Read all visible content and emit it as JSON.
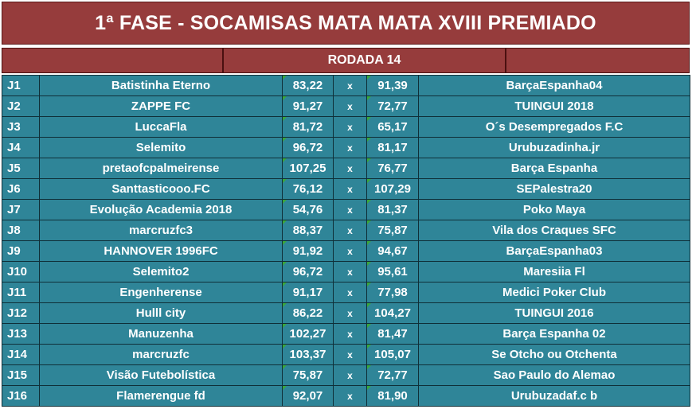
{
  "title": "1ª FASE - SOCAMISAS MATA MATA XVIII PREMIADO",
  "round_label": "RODADA 14",
  "vs_symbol": "x",
  "matches": [
    {
      "game": "J1",
      "home": "Batistinha Eterno",
      "home_score": "83,22",
      "away_score": "91,39",
      "away": "BarçaEspanha04"
    },
    {
      "game": "J2",
      "home": "ZAPPE FC",
      "home_score": "91,27",
      "away_score": "72,77",
      "away": "TUINGUI 2018"
    },
    {
      "game": "J3",
      "home": "LuccaFla",
      "home_score": "81,72",
      "away_score": "65,17",
      "away": "O´s Desempregados F.C"
    },
    {
      "game": "J4",
      "home": "Selemito",
      "home_score": "96,72",
      "away_score": "81,17",
      "away": "Urubuzadinha.jr"
    },
    {
      "game": "J5",
      "home": "pretaofcpalmeirense",
      "home_score": "107,25",
      "away_score": "76,77",
      "away": "Barça Espanha"
    },
    {
      "game": "J6",
      "home": "Santtasticooo.FC",
      "home_score": "76,12",
      "away_score": "107,29",
      "away": "SEPalestra20"
    },
    {
      "game": "J7",
      "home": "Evolução Academia 2018",
      "home_score": "54,76",
      "away_score": "81,37",
      "away": "Poko Maya"
    },
    {
      "game": "J8",
      "home": "marcruzfc3",
      "home_score": "88,37",
      "away_score": "75,87",
      "away": "Vila dos Craques SFC"
    },
    {
      "game": "J9",
      "home": "HANNOVER 1996FC",
      "home_score": "91,92",
      "away_score": "94,67",
      "away": "BarçaEspanha03"
    },
    {
      "game": "J10",
      "home": "Selemito2",
      "home_score": "96,72",
      "away_score": "95,61",
      "away": "Maresiia Fl"
    },
    {
      "game": "J11",
      "home": "Engenherense",
      "home_score": "91,17",
      "away_score": "77,98",
      "away": "Medici Poker Club"
    },
    {
      "game": "J12",
      "home": "Hulll city",
      "home_score": "86,22",
      "away_score": "104,27",
      "away": "TUINGUI 2016"
    },
    {
      "game": "J13",
      "home": "Manuzenha",
      "home_score": "102,27",
      "away_score": "81,47",
      "away": "Barça Espanha 02"
    },
    {
      "game": "J14",
      "home": "marcruzfc",
      "home_score": "103,37",
      "away_score": "105,07",
      "away": "Se Otcho ou Otchenta"
    },
    {
      "game": "J15",
      "home": "Visão Futebolística",
      "home_score": "75,87",
      "away_score": "72,77",
      "away": "Sao Paulo do Alemao"
    },
    {
      "game": "J16",
      "home": "Flamerengue fd",
      "home_score": "92,07",
      "away_score": "81,90",
      "away": "Urubuzadaf.c b"
    }
  ]
}
